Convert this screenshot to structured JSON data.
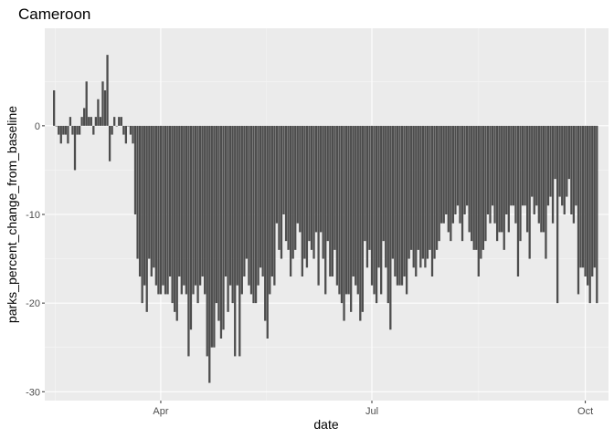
{
  "chart_data": {
    "type": "bar",
    "title": "Cameroon",
    "xlabel": "date",
    "ylabel": "parks_percent_change_from_baseline",
    "x_start": "2020-02-15",
    "x_end": "2020-10-06",
    "xlim": [
      "2020-02-11",
      "2020-10-11"
    ],
    "ylim": [
      -31,
      11
    ],
    "x_ticks": [
      {
        "date": "2020-04-01",
        "label": "Apr"
      },
      {
        "date": "2020-07-01",
        "label": "Jul"
      },
      {
        "date": "2020-10-01",
        "label": "Oct"
      }
    ],
    "y_ticks": [
      {
        "value": 0,
        "label": "0"
      },
      {
        "value": -10,
        "label": "-10"
      },
      {
        "value": -20,
        "label": "-20"
      },
      {
        "value": -30,
        "label": "-30"
      }
    ],
    "grid": true,
    "bar_color": "#4d4d4d",
    "panel_color": "#ebebeb",
    "values": [
      4,
      0,
      -1,
      -2,
      -1,
      -1,
      -2,
      1,
      -1,
      -5,
      -1,
      -1,
      1,
      2,
      5,
      1,
      1,
      -1,
      1,
      3,
      1,
      5,
      4,
      8,
      -4,
      -1,
      1,
      0,
      1,
      1,
      -1,
      -2,
      0,
      -1,
      -2,
      -10,
      -15,
      -17,
      -20,
      -18,
      -21,
      -15,
      -17,
      -16,
      -18,
      -19,
      -19,
      -18,
      -19,
      -19,
      -17,
      -20,
      -21,
      -22,
      -17,
      -19,
      -18,
      -19,
      -26,
      -23,
      -19,
      -18,
      -20,
      -18,
      -17,
      -19,
      -26,
      -29,
      -25,
      -25,
      -20,
      -22,
      -24,
      -23,
      -17,
      -21,
      -18,
      -20,
      -26,
      -18,
      -26,
      -19,
      -17,
      -15,
      -18,
      -19,
      -20,
      -20,
      -18,
      -16,
      -17,
      -22,
      -24,
      -19,
      -17,
      -18,
      -11,
      -14,
      -15,
      -10,
      -13,
      -14,
      -17,
      -15,
      -14,
      -11,
      -12,
      -17,
      -15,
      -16,
      -13,
      -14,
      -15,
      -12,
      -18,
      -12,
      -15,
      -19,
      -13,
      -17,
      -17,
      -14,
      -18,
      -19,
      -20,
      -22,
      -19,
      -19,
      -21,
      -17,
      -18,
      -19,
      -22,
      -21,
      -13,
      -16,
      -14,
      -18,
      -19,
      -20,
      -16,
      -19,
      -13,
      -16,
      -20,
      -23,
      -15,
      -17,
      -18,
      -18,
      -18,
      -17,
      -19,
      -15,
      -14,
      -16,
      -17,
      -14,
      -16,
      -15,
      -16,
      -15,
      -14,
      -17,
      -15,
      -14,
      -13,
      -11,
      -11,
      -10,
      -12,
      -13,
      -11,
      -10,
      -9,
      -11,
      -13,
      -10,
      -9,
      -12,
      -13,
      -14,
      -14,
      -17,
      -15,
      -14,
      -13,
      -10,
      -11,
      -9,
      -11,
      -13,
      -12,
      -12,
      -14,
      -10,
      -12,
      -9,
      -9,
      -11,
      -17,
      -13,
      -9,
      -9,
      -12,
      -15,
      -8,
      -10,
      -9,
      -11,
      -12,
      -12,
      -15,
      -9,
      -8,
      -11,
      -6,
      -20,
      -8,
      -9,
      -10,
      -8,
      -6,
      -10,
      -11,
      -9,
      -19,
      -16,
      -16,
      -17,
      -18,
      -20,
      -17,
      -16,
      -20
    ]
  }
}
